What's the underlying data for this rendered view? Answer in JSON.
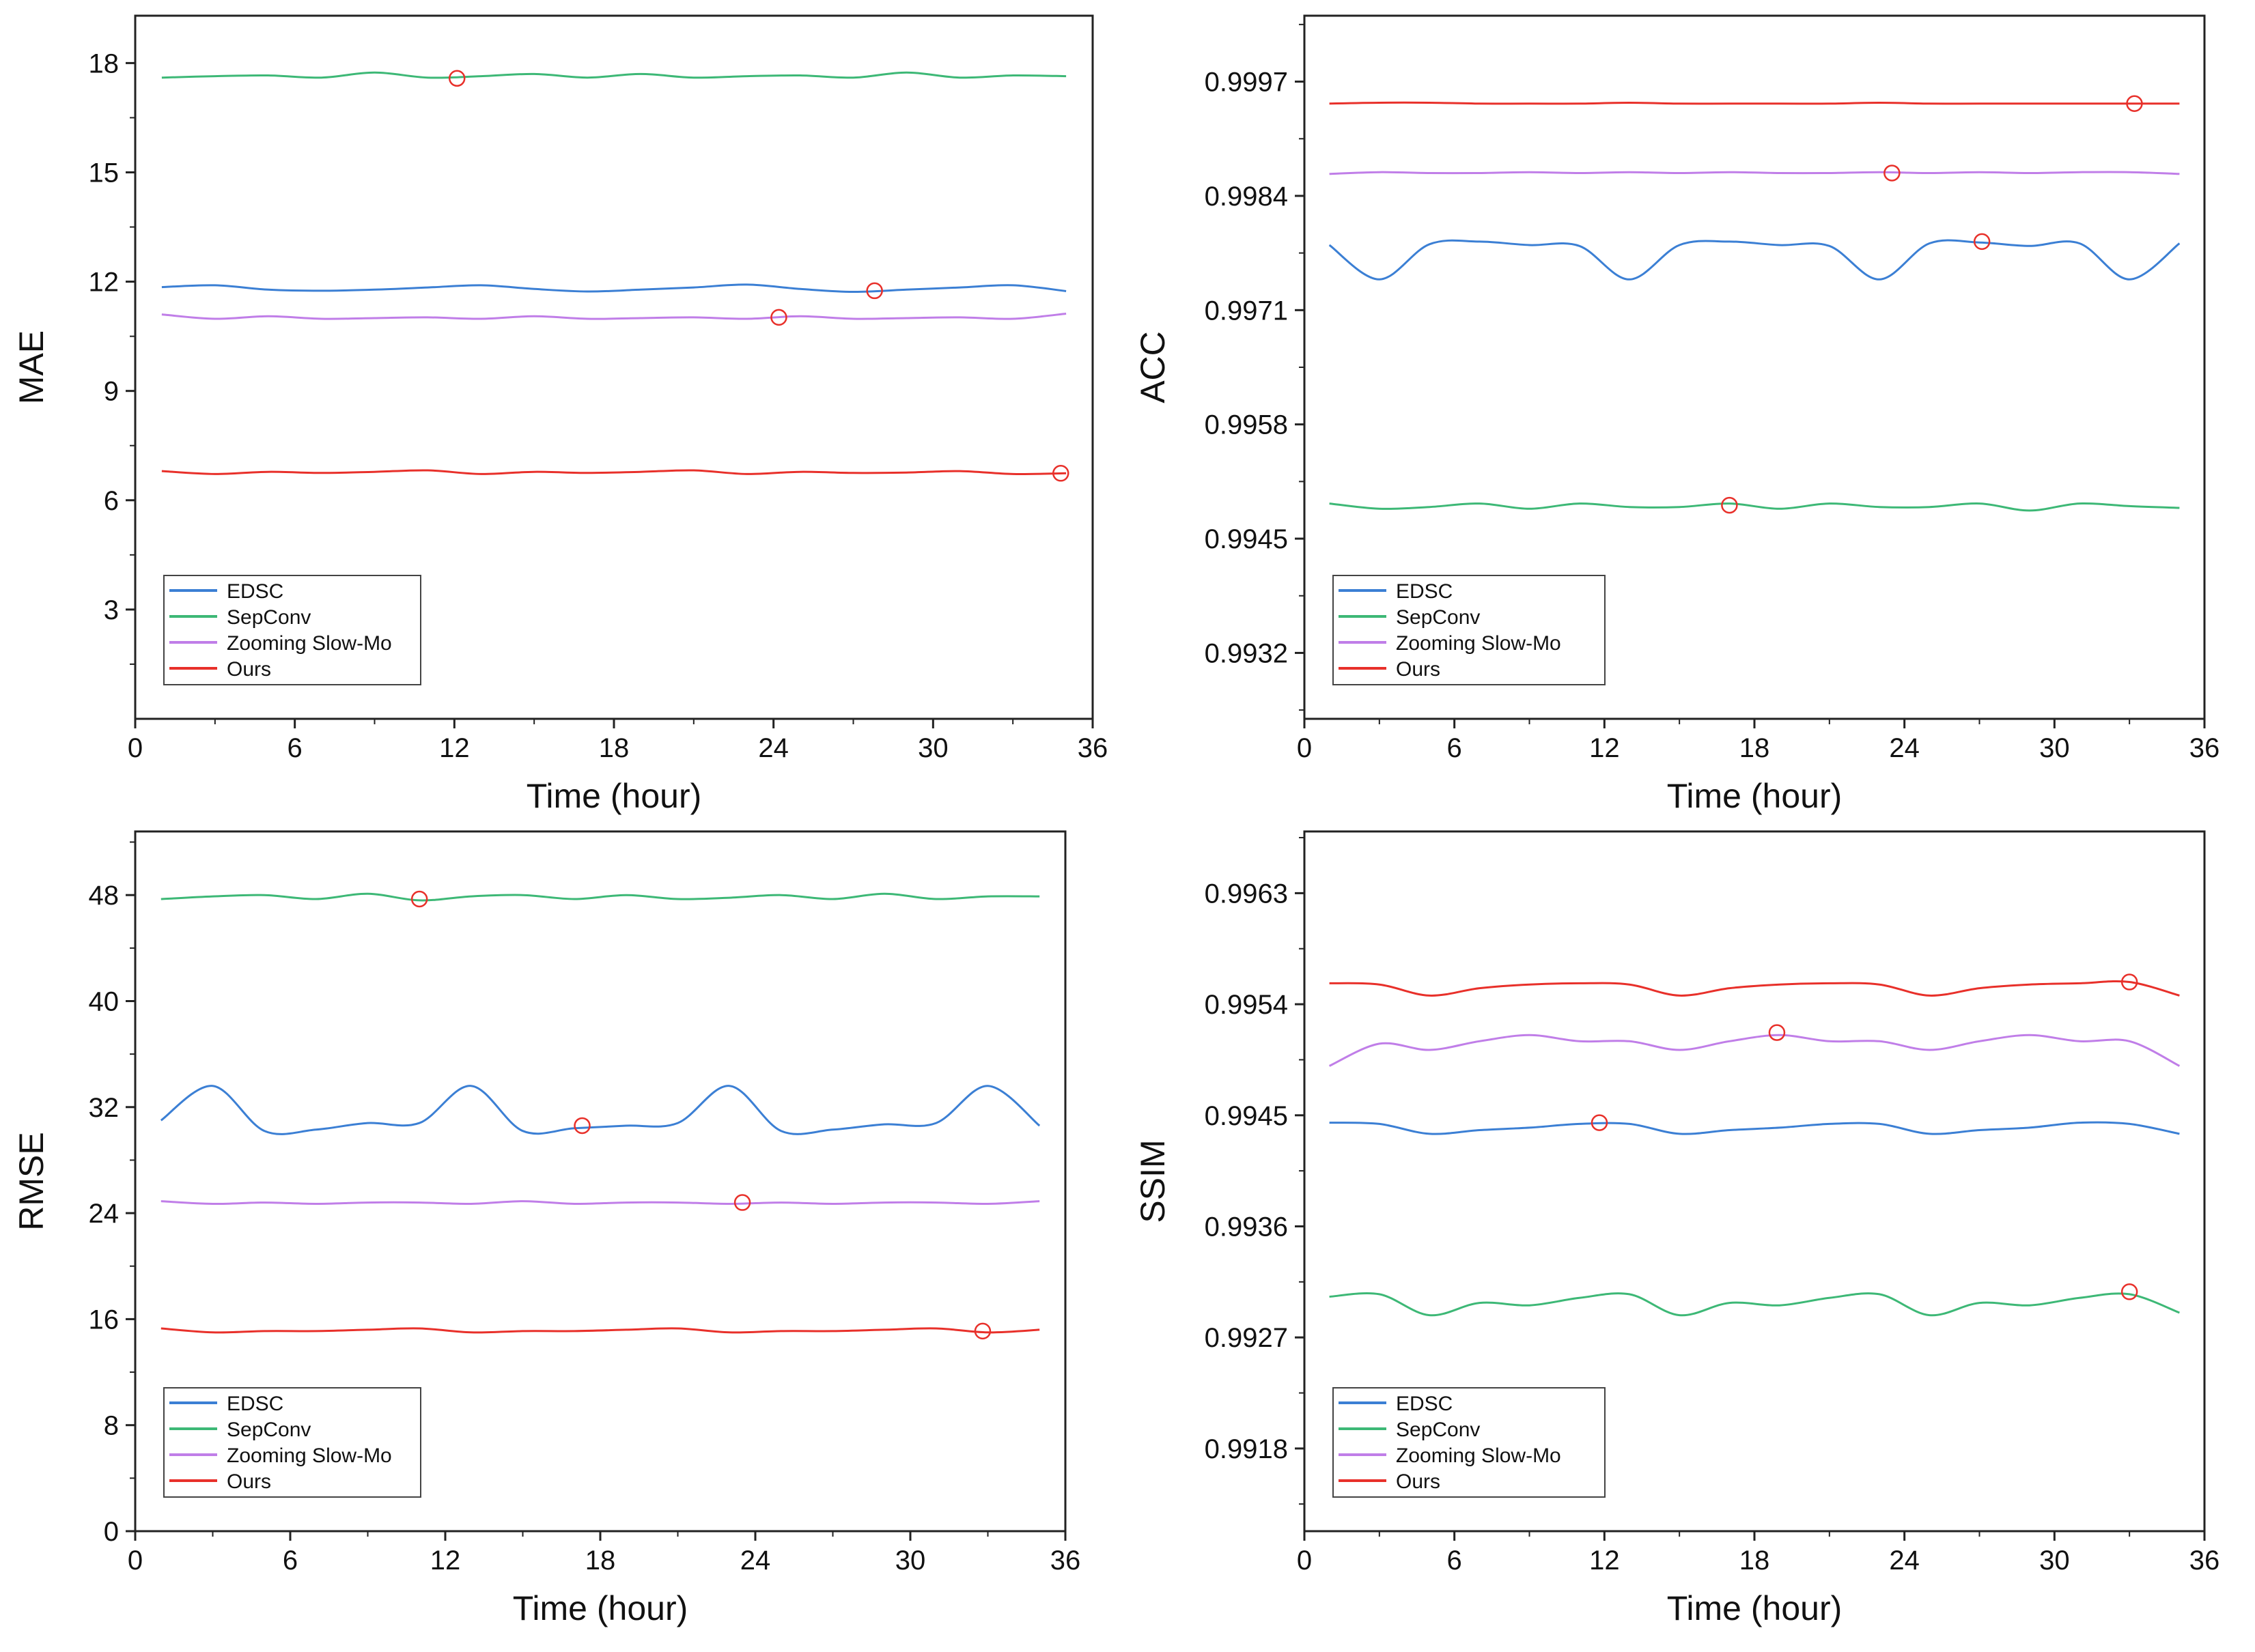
{
  "chart_data": [
    {
      "type": "line",
      "ylabel": "MAE",
      "xlabel": "Time (hour)",
      "xlim": [
        0,
        36
      ],
      "xticks": [
        0,
        6,
        12,
        18,
        24,
        30,
        36
      ],
      "ylim": [
        0,
        19.3
      ],
      "yticks": [
        3,
        6,
        9,
        12,
        15,
        18
      ],
      "ytick_labels": [
        "3",
        "6",
        "9",
        "12",
        "15",
        "18"
      ],
      "legend_position": "bottom-left",
      "x": [
        1,
        3,
        5,
        7,
        9,
        11,
        13,
        15,
        17,
        19,
        21,
        23,
        25,
        27,
        29,
        31,
        33,
        35
      ],
      "series": [
        {
          "name": "EDSC",
          "color": "#3b7fd4",
          "values": [
            11.85,
            11.9,
            11.78,
            11.75,
            11.78,
            11.84,
            11.9,
            11.8,
            11.73,
            11.78,
            11.84,
            11.92,
            11.8,
            11.72,
            11.78,
            11.84,
            11.9,
            11.74
          ],
          "marker": {
            "x": 27.8,
            "y": 11.75
          }
        },
        {
          "name": "SepConv",
          "color": "#3db876",
          "values": [
            17.6,
            17.64,
            17.66,
            17.6,
            17.74,
            17.6,
            17.64,
            17.7,
            17.6,
            17.7,
            17.6,
            17.64,
            17.66,
            17.6,
            17.74,
            17.6,
            17.66,
            17.64
          ],
          "marker": {
            "x": 12.1,
            "y": 17.58
          }
        },
        {
          "name": "Zooming Slow-Mo",
          "color": "#c07ee8",
          "values": [
            11.1,
            10.98,
            11.05,
            10.98,
            11.0,
            11.02,
            10.98,
            11.05,
            10.98,
            11.0,
            11.02,
            10.98,
            11.05,
            10.98,
            11.0,
            11.02,
            10.98,
            11.12
          ],
          "marker": {
            "x": 24.2,
            "y": 11.02
          }
        },
        {
          "name": "Ours",
          "color": "#e8302a",
          "values": [
            6.8,
            6.72,
            6.78,
            6.75,
            6.78,
            6.82,
            6.72,
            6.78,
            6.75,
            6.78,
            6.82,
            6.72,
            6.78,
            6.75,
            6.76,
            6.8,
            6.72,
            6.74
          ],
          "marker": {
            "x": 34.8,
            "y": 6.74
          }
        }
      ]
    },
    {
      "type": "line",
      "ylabel": "ACC",
      "xlabel": "Time (hour)",
      "xlim": [
        0,
        36
      ],
      "xticks": [
        0,
        6,
        12,
        18,
        24,
        30,
        36
      ],
      "ylim": [
        0.99245,
        1.00045
      ],
      "yticks": [
        0.9932,
        0.9945,
        0.9958,
        0.9971,
        0.9984,
        0.9997
      ],
      "ytick_labels": [
        "0.9932",
        "0.9945",
        "0.9958",
        "0.9971",
        "0.9984",
        "0.9997"
      ],
      "legend_position": "bottom-left",
      "x": [
        1,
        3,
        5,
        7,
        9,
        11,
        13,
        15,
        17,
        19,
        21,
        23,
        25,
        27,
        29,
        31,
        33,
        35
      ],
      "series": [
        {
          "name": "EDSC",
          "color": "#3b7fd4",
          "values": [
            0.99784,
            0.99745,
            0.99785,
            0.99788,
            0.99784,
            0.99783,
            0.99745,
            0.99784,
            0.99788,
            0.99784,
            0.99783,
            0.99745,
            0.99786,
            0.99787,
            0.99783,
            0.99786,
            0.99745,
            0.99786
          ],
          "marker": {
            "x": 27.1,
            "y": 0.99788
          }
        },
        {
          "name": "SepConv",
          "color": "#3db876",
          "values": [
            0.9949,
            0.99484,
            0.99486,
            0.9949,
            0.99484,
            0.9949,
            0.99486,
            0.99486,
            0.9949,
            0.99484,
            0.9949,
            0.99486,
            0.99486,
            0.9949,
            0.99482,
            0.9949,
            0.99487,
            0.99485
          ],
          "marker": {
            "x": 17.0,
            "y": 0.99488
          }
        },
        {
          "name": "Zooming Slow-Mo",
          "color": "#c07ee8",
          "values": [
            0.99865,
            0.99867,
            0.99866,
            0.99866,
            0.99867,
            0.99866,
            0.99867,
            0.99866,
            0.99867,
            0.99866,
            0.99866,
            0.99867,
            0.99866,
            0.99867,
            0.99866,
            0.99867,
            0.99867,
            0.99865
          ],
          "marker": {
            "x": 23.5,
            "y": 0.99866
          }
        },
        {
          "name": "Ours",
          "color": "#e8302a",
          "values": [
            0.99945,
            0.99946,
            0.99946,
            0.99945,
            0.99945,
            0.99945,
            0.99946,
            0.99945,
            0.99945,
            0.99945,
            0.99945,
            0.99946,
            0.99945,
            0.99945,
            0.99945,
            0.99945,
            0.99945,
            0.99945
          ],
          "marker": {
            "x": 33.2,
            "y": 0.99945
          }
        }
      ]
    },
    {
      "type": "line",
      "ylabel": "RMSE",
      "xlabel": "Time (hour)",
      "xlim": [
        0,
        36
      ],
      "xticks": [
        0,
        6,
        12,
        18,
        24,
        30,
        36
      ],
      "ylim": [
        0,
        52.8
      ],
      "yticks": [
        0,
        8,
        16,
        24,
        32,
        40,
        48
      ],
      "ytick_labels": [
        "0",
        "8",
        "16",
        "24",
        "32",
        "40",
        "48"
      ],
      "legend_position": "bottom-left",
      "x": [
        1,
        3,
        5,
        7,
        9,
        11,
        13,
        15,
        17,
        19,
        21,
        23,
        25,
        27,
        29,
        31,
        33,
        35
      ],
      "series": [
        {
          "name": "EDSC",
          "color": "#3b7fd4",
          "values": [
            31.0,
            33.6,
            30.2,
            30.3,
            30.8,
            30.8,
            33.6,
            30.2,
            30.4,
            30.6,
            30.8,
            33.6,
            30.2,
            30.3,
            30.7,
            30.8,
            33.6,
            30.6
          ],
          "marker": {
            "x": 17.3,
            "y": 30.6
          }
        },
        {
          "name": "SepConv",
          "color": "#3db876",
          "values": [
            47.7,
            47.9,
            48.0,
            47.7,
            48.1,
            47.6,
            47.9,
            48.0,
            47.7,
            48.0,
            47.7,
            47.8,
            48.0,
            47.7,
            48.1,
            47.7,
            47.9,
            47.9
          ],
          "marker": {
            "x": 11.0,
            "y": 47.7
          }
        },
        {
          "name": "Zooming Slow-Mo",
          "color": "#c07ee8",
          "values": [
            24.9,
            24.7,
            24.8,
            24.7,
            24.8,
            24.8,
            24.7,
            24.9,
            24.7,
            24.8,
            24.8,
            24.7,
            24.8,
            24.7,
            24.8,
            24.8,
            24.7,
            24.9
          ],
          "marker": {
            "x": 23.5,
            "y": 24.8
          }
        },
        {
          "name": "Ours",
          "color": "#e8302a",
          "values": [
            15.3,
            15.0,
            15.1,
            15.1,
            15.2,
            15.3,
            15.0,
            15.1,
            15.1,
            15.2,
            15.3,
            15.0,
            15.1,
            15.1,
            15.2,
            15.3,
            15.0,
            15.2
          ],
          "marker": {
            "x": 32.8,
            "y": 15.1
          }
        }
      ]
    },
    {
      "type": "line",
      "ylabel": "SSIM",
      "xlabel": "Time (hour)",
      "xlim": [
        0,
        36
      ],
      "xticks": [
        0,
        6,
        12,
        18,
        24,
        30,
        36
      ],
      "ylim": [
        0.99113,
        0.9968
      ],
      "yticks": [
        0.9918,
        0.9927,
        0.9936,
        0.9945,
        0.9954,
        0.9963
      ],
      "ytick_labels": [
        "0.9918",
        "0.9927",
        "0.9936",
        "0.9945",
        "0.9954",
        "0.9963"
      ],
      "legend_position": "bottom-left",
      "x": [
        1,
        3,
        5,
        7,
        9,
        11,
        13,
        15,
        17,
        19,
        21,
        23,
        25,
        27,
        29,
        31,
        33,
        35
      ],
      "series": [
        {
          "name": "EDSC",
          "color": "#3b7fd4",
          "values": [
            0.99444,
            0.99443,
            0.99435,
            0.99438,
            0.9944,
            0.99443,
            0.99443,
            0.99435,
            0.99438,
            0.9944,
            0.99443,
            0.99443,
            0.99435,
            0.99438,
            0.9944,
            0.99444,
            0.99443,
            0.99435
          ],
          "marker": {
            "x": 11.8,
            "y": 0.99444
          }
        },
        {
          "name": "SepConv",
          "color": "#3db876",
          "values": [
            0.99303,
            0.99305,
            0.99288,
            0.99298,
            0.99296,
            0.99302,
            0.99305,
            0.99288,
            0.99298,
            0.99296,
            0.99302,
            0.99305,
            0.99288,
            0.99298,
            0.99296,
            0.99302,
            0.99305,
            0.9929
          ],
          "marker": {
            "x": 33.0,
            "y": 0.99307
          }
        },
        {
          "name": "Zooming Slow-Mo",
          "color": "#c07ee8",
          "values": [
            0.9949,
            0.99508,
            0.99503,
            0.9951,
            0.99515,
            0.9951,
            0.9951,
            0.99503,
            0.9951,
            0.99515,
            0.9951,
            0.9951,
            0.99503,
            0.9951,
            0.99515,
            0.9951,
            0.9951,
            0.9949
          ],
          "marker": {
            "x": 18.9,
            "y": 0.99517
          }
        },
        {
          "name": "Ours",
          "color": "#e8302a",
          "values": [
            0.99557,
            0.99556,
            0.99547,
            0.99553,
            0.99556,
            0.99557,
            0.99556,
            0.99547,
            0.99553,
            0.99556,
            0.99557,
            0.99556,
            0.99547,
            0.99553,
            0.99556,
            0.99557,
            0.99558,
            0.99547
          ],
          "marker": {
            "x": 33.0,
            "y": 0.99558
          }
        }
      ]
    }
  ]
}
